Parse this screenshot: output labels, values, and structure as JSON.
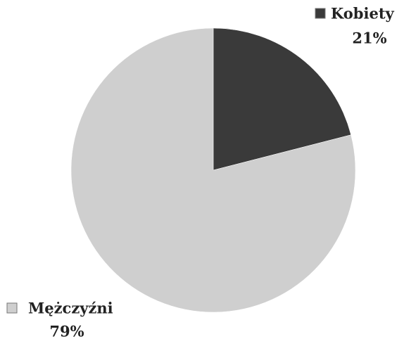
{
  "chart_data": {
    "type": "pie",
    "categories": [
      "Kobiety",
      "Mężczyźni"
    ],
    "values": [
      21,
      79
    ],
    "value_labels": [
      "21%",
      "79%"
    ],
    "colors": [
      "#3a3a3a",
      "#cfcfcf"
    ],
    "start_angle": 0,
    "direction": "clockwise"
  }
}
